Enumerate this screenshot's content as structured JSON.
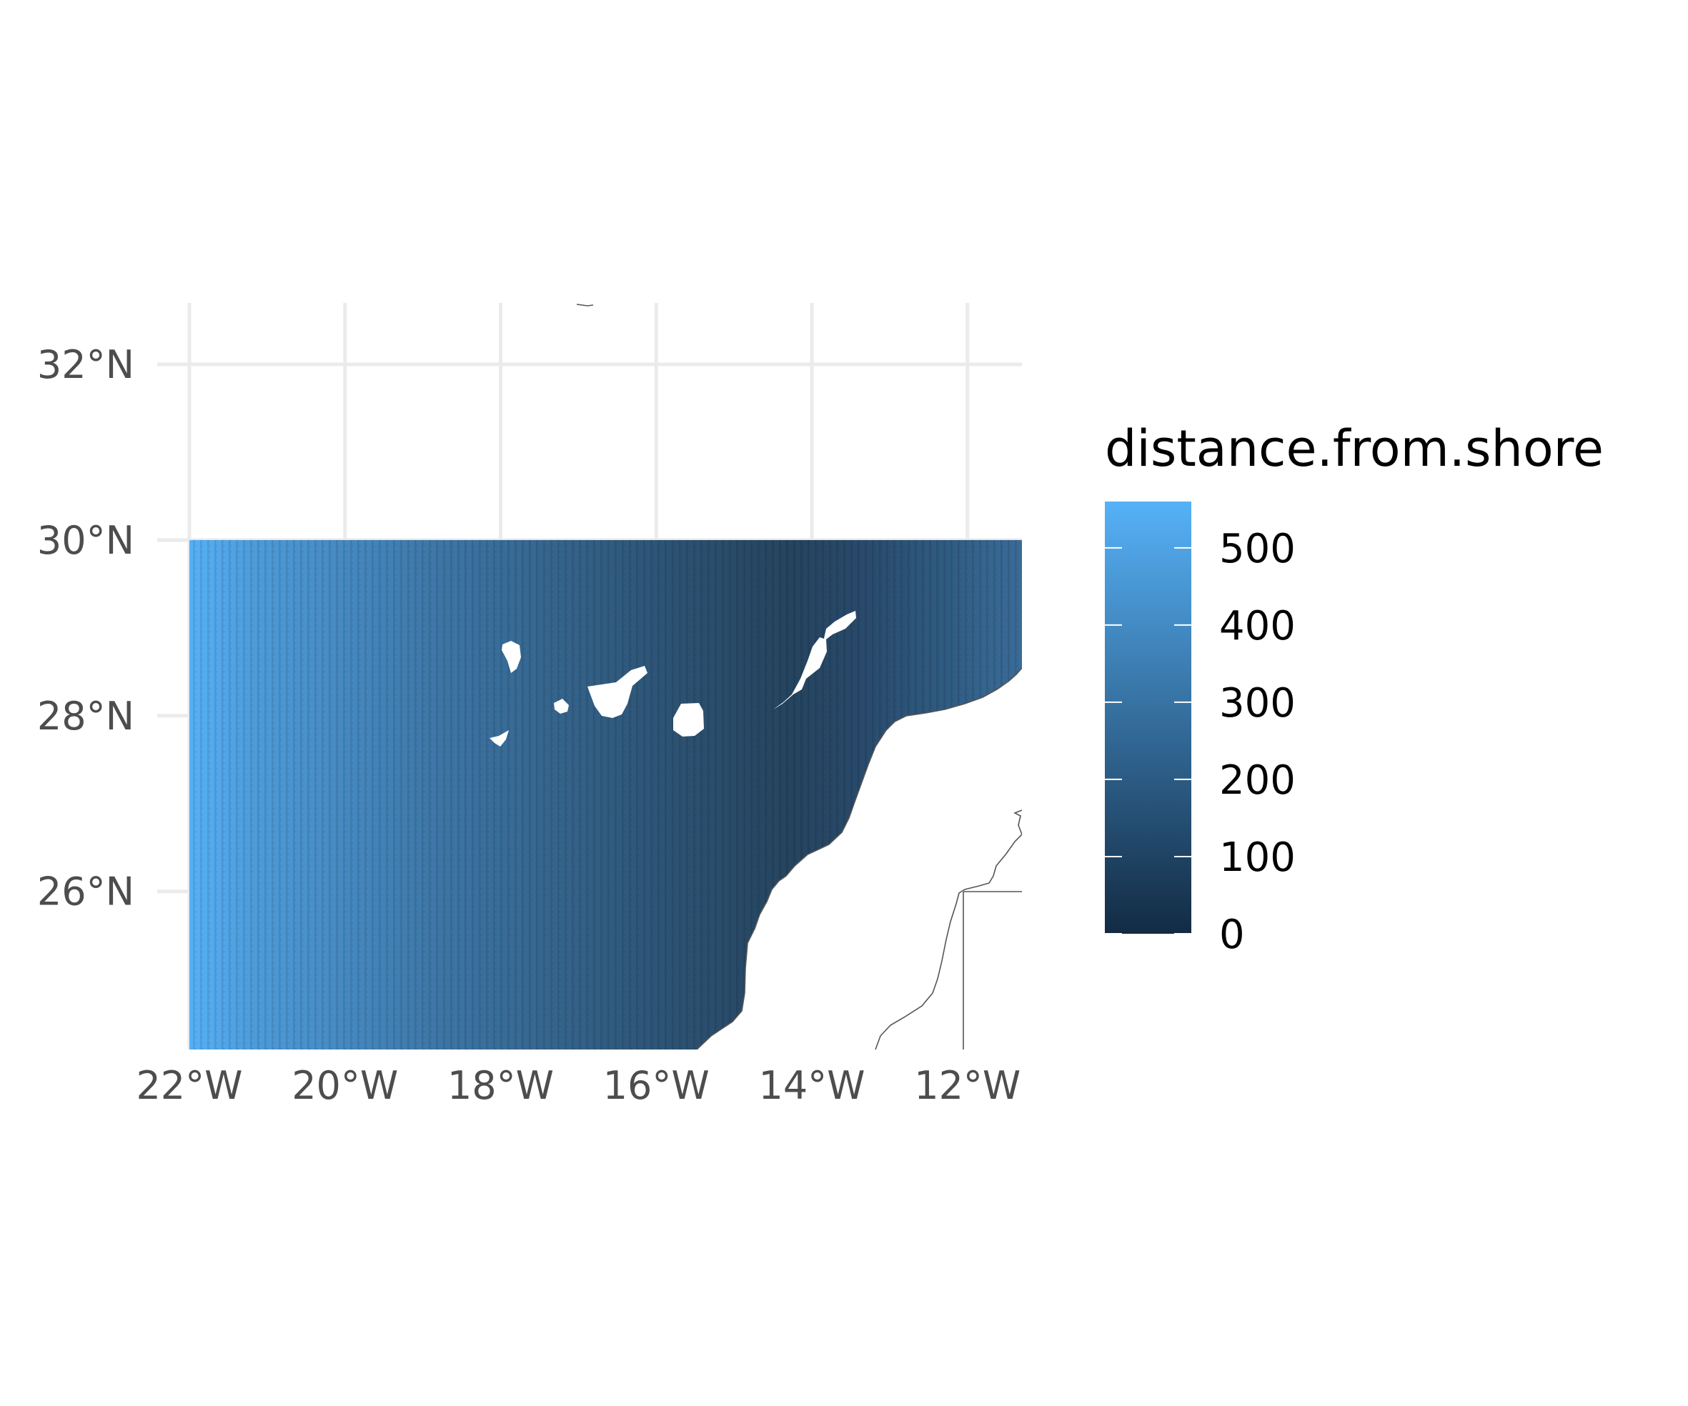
{
  "map": {
    "lon_range": [
      -22,
      -11.3
    ],
    "lat_range": [
      24.2,
      32.7
    ],
    "raster_lat_range": [
      24.2,
      30
    ],
    "lon_ticks": [
      {
        "value": -22,
        "label": "22°W"
      },
      {
        "value": -20,
        "label": "20°W"
      },
      {
        "value": -18,
        "label": "18°W"
      },
      {
        "value": -16,
        "label": "16°W"
      },
      {
        "value": -14,
        "label": "14°W"
      },
      {
        "value": -12,
        "label": "12°W"
      }
    ],
    "lat_ticks": [
      {
        "value": 32,
        "label": "32°N"
      },
      {
        "value": 30,
        "label": "30°N"
      },
      {
        "value": 28,
        "label": "28°N"
      },
      {
        "value": 26,
        "label": "26°N"
      }
    ],
    "fill_variable": "distance.from.shore",
    "land_color": "#ffffff",
    "grid_color": "#ebebeb",
    "background": "#ffffff",
    "coastline_color": "#555555"
  },
  "legend": {
    "title": "distance.from.shore",
    "placement": "right",
    "range": [
      0,
      560
    ],
    "low_color": "#132b43",
    "high_color": "#56b1f7",
    "breaks": [
      {
        "value": 500,
        "label": "500"
      },
      {
        "value": 400,
        "label": "400"
      },
      {
        "value": 300,
        "label": "300"
      },
      {
        "value": 200,
        "label": "200"
      },
      {
        "value": 100,
        "label": "100"
      },
      {
        "value": 0,
        "label": "0"
      }
    ]
  }
}
